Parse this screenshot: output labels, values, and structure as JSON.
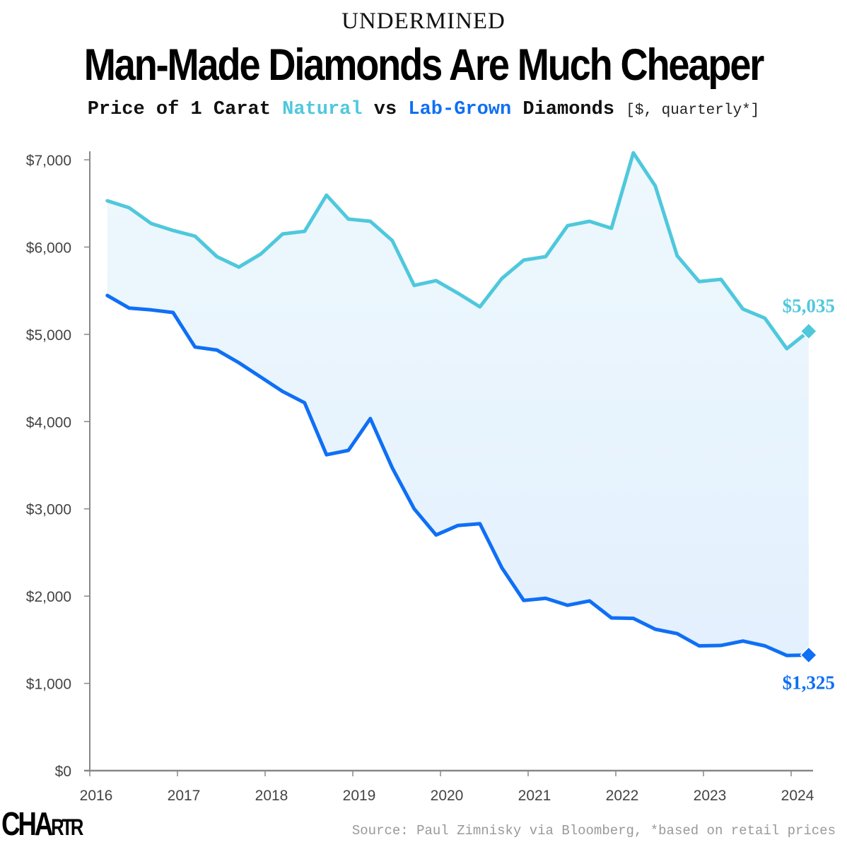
{
  "header": {
    "kicker": "UNDERMINED",
    "title": "Man-Made Diamonds Are Much Cheaper",
    "subtitle_prefix": "Price of 1 Carat ",
    "subtitle_natural": "Natural",
    "subtitle_vs": " vs ",
    "subtitle_lab": "Lab-Grown",
    "subtitle_suffix": " Diamonds ",
    "subtitle_unit": "[$, quarterly*]"
  },
  "footer": {
    "logo_big": "CHA",
    "logo_small": "RTR",
    "source": "Source: Paul Zimnisky via Bloomberg, *based on retail prices"
  },
  "colors": {
    "natural": "#4fc8dc",
    "lab": "#0f6ff5",
    "fill": "#e8f4fd",
    "axis": "#888888"
  },
  "chart_data": {
    "type": "line",
    "title": "Price of 1 Carat Natural vs Lab-Grown Diamonds [$, quarterly*]",
    "xlabel": "",
    "ylabel": "",
    "xlim": [
      2016,
      2024.25
    ],
    "ylim": [
      0,
      7000
    ],
    "grid": false,
    "x_ticks": [
      2016,
      2017,
      2018,
      2019,
      2020,
      2021,
      2022,
      2023,
      2024
    ],
    "x_tick_labels": [
      "2016",
      "2017",
      "2018",
      "2019",
      "2020",
      "2021",
      "2022",
      "2023",
      "2024"
    ],
    "y_ticks": [
      0,
      1000,
      2000,
      3000,
      4000,
      5000,
      6000,
      7000
    ],
    "y_tick_labels": [
      "$0",
      "$1,000",
      "$2,000",
      "$3,000",
      "$4,000",
      "$5,000",
      "$6,000",
      "$7,000"
    ],
    "x": [
      2016.2,
      2016.45,
      2016.7,
      2016.95,
      2017.2,
      2017.45,
      2017.7,
      2017.95,
      2018.2,
      2018.45,
      2018.7,
      2018.95,
      2019.2,
      2019.45,
      2019.7,
      2019.95,
      2020.2,
      2020.45,
      2020.7,
      2020.95,
      2021.2,
      2021.45,
      2021.7,
      2021.95,
      2022.2,
      2022.45,
      2022.7,
      2022.95,
      2023.2,
      2023.45,
      2023.7,
      2023.95,
      2024.2
    ],
    "series": [
      {
        "name": "Natural",
        "color": "#4fc8dc",
        "values": [
          6530,
          6450,
          6270,
          6190,
          6125,
          5890,
          5770,
          5920,
          6150,
          6180,
          6595,
          6320,
          6295,
          6075,
          5560,
          5615,
          5470,
          5315,
          5640,
          5850,
          5890,
          6245,
          6295,
          6215,
          7080,
          6700,
          5900,
          5605,
          5630,
          5290,
          5185,
          4835,
          5035
        ],
        "end_label": "$5,035"
      },
      {
        "name": "Lab-Grown",
        "color": "#0f6ff5",
        "values": [
          5445,
          5300,
          5280,
          5250,
          4855,
          4820,
          4675,
          4510,
          4345,
          4215,
          3620,
          3670,
          4035,
          3470,
          3000,
          2700,
          2810,
          2830,
          2325,
          1950,
          1975,
          1895,
          1945,
          1750,
          1745,
          1620,
          1570,
          1430,
          1435,
          1485,
          1430,
          1320,
          1325
        ],
        "end_label": "$1,325"
      }
    ],
    "annotations": [
      "$5,035",
      "$1,325"
    ]
  }
}
